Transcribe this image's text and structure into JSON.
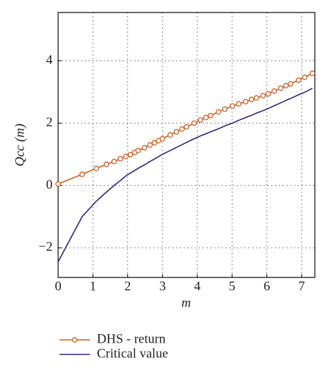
{
  "chart_data": {
    "type": "line",
    "x_label": "m",
    "y_label": "Qcc (m)",
    "x": [
      0,
      0.69,
      1.1,
      1.39,
      1.61,
      1.79,
      1.95,
      2.08,
      2.2,
      2.3,
      2.48,
      2.64,
      2.77,
      2.89,
      3.0,
      3.22,
      3.4,
      3.56,
      3.69,
      3.91,
      4.09,
      4.25,
      4.38,
      4.61,
      4.79,
      5.01,
      5.19,
      5.39,
      5.56,
      5.7,
      5.89,
      6.04,
      6.21,
      6.4,
      6.55,
      6.68,
      6.91,
      7.09,
      7.31
    ],
    "series": [
      {
        "name": "DHS - return",
        "color": "#cc5a1e",
        "marker": "circle",
        "values": [
          0.05,
          0.36,
          0.55,
          0.68,
          0.77,
          0.86,
          0.93,
          0.99,
          1.06,
          1.12,
          1.21,
          1.3,
          1.37,
          1.44,
          1.5,
          1.62,
          1.72,
          1.81,
          1.88,
          2.0,
          2.1,
          2.18,
          2.24,
          2.36,
          2.45,
          2.55,
          2.62,
          2.69,
          2.76,
          2.81,
          2.88,
          2.94,
          3.03,
          3.12,
          3.2,
          3.26,
          3.38,
          3.47,
          3.6
        ]
      },
      {
        "name": "Critical value",
        "color": "#23237a",
        "marker": "none",
        "values": [
          -2.45,
          -1.0,
          -0.5,
          -0.21,
          0.0,
          0.16,
          0.31,
          0.4,
          0.48,
          0.55,
          0.66,
          0.77,
          0.85,
          0.93,
          1.0,
          1.12,
          1.22,
          1.31,
          1.38,
          1.5,
          1.59,
          1.66,
          1.72,
          1.82,
          1.91,
          2.0,
          2.09,
          2.18,
          2.25,
          2.32,
          2.4,
          2.47,
          2.56,
          2.65,
          2.73,
          2.79,
          2.91,
          2.99,
          3.12
        ]
      }
    ],
    "xlim": [
      0,
      7.38
    ],
    "ylim": [
      -2.95,
      5.55
    ],
    "xticks": [
      0,
      1,
      2,
      3,
      4,
      5,
      6,
      7
    ],
    "yticks": [
      {
        "value": -2,
        "label": "−2"
      },
      0,
      2,
      4
    ],
    "grid": true,
    "legend": "below"
  }
}
